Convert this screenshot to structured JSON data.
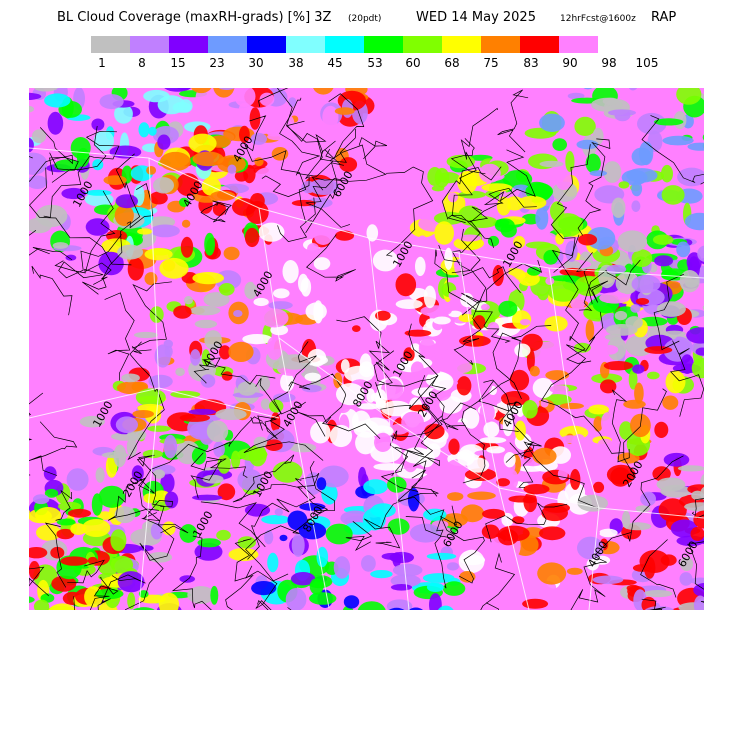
{
  "header": {
    "title_main": "BL Cloud Coverage (maxRH-grads) [%] 3Z",
    "title_sub": "(20pdt)",
    "title_rest": "WED 14 May 2025",
    "forecast": "12hrFcst@1600z",
    "model": "RAP"
  },
  "legend": {
    "colors": [
      "#c0c0c0",
      "#c080ff",
      "#8000ff",
      "#6e9bff",
      "#0000ff",
      "#80ffff",
      "#00ffff",
      "#00ff00",
      "#80ff00",
      "#ffff00",
      "#ff8000",
      "#ff0000",
      "#ff80ff"
    ],
    "labels": [
      "1",
      "8",
      "15",
      "23",
      "30",
      "38",
      "45",
      "53",
      "60",
      "68",
      "75",
      "83",
      "90",
      "98",
      "105"
    ]
  },
  "map": {
    "contour_labels": [
      "4000",
      "6000",
      "1000",
      "4000",
      "1000",
      "4000",
      "4000",
      "1000",
      "2000",
      "1000",
      "4000",
      "8000",
      "1000",
      "1000",
      "1000",
      "2000",
      "4000",
      "8000",
      "2000",
      "6000",
      "6000",
      "4000"
    ],
    "palette": [
      "#ffffff",
      "#ff80ff",
      "#ff0000",
      "#ff8000",
      "#ffff00",
      "#80ff00",
      "#00ff00",
      "#00ffff",
      "#80ffff",
      "#0000ff",
      "#6e9bff",
      "#8000ff",
      "#c080ff",
      "#c0c0c0"
    ]
  }
}
